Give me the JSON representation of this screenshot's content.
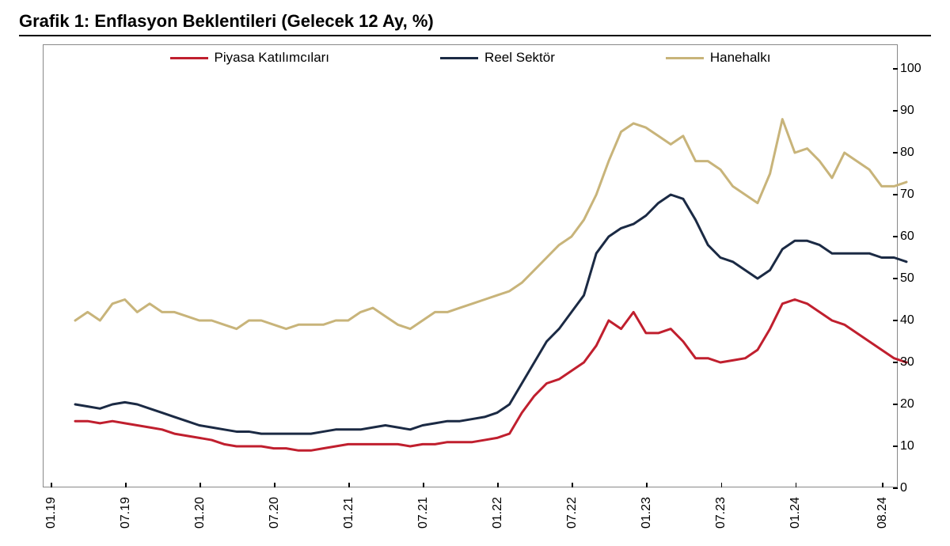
{
  "chart": {
    "type": "line",
    "title": "Grafik 1: Enflasyon Beklentileri (Gelecek 12 Ay, %)",
    "title_fontsize": 22,
    "title_fontweight": 700,
    "background_color": "#ffffff",
    "border_color": "#888888",
    "axis_color": "#000000",
    "tick_font_size": 16,
    "legend_font_size": 17,
    "legend_position": "top-center",
    "line_width": 3,
    "ylim": [
      0,
      100
    ],
    "ytick_step": 10,
    "yticklabels": [
      "0",
      "10",
      "20",
      "30",
      "40",
      "50",
      "60",
      "70",
      "80",
      "90",
      "100"
    ],
    "yaxis_side": "right",
    "x_count": 68,
    "xticklabels": [
      "01.19",
      "07.19",
      "01.20",
      "07.20",
      "01.21",
      "07.21",
      "01.22",
      "07.22",
      "01.23",
      "07.23",
      "01.24",
      "08.24"
    ],
    "xtick_positions": [
      0,
      6,
      12,
      18,
      24,
      30,
      36,
      42,
      48,
      54,
      60,
      67
    ],
    "xtick_rotation": -90,
    "series": [
      {
        "name": "Piyasa Katılımcıları",
        "color": "#c01f2e",
        "values": [
          16,
          16,
          15.5,
          16,
          15.5,
          15,
          14.5,
          14,
          13,
          12.5,
          12,
          11.5,
          10.5,
          10,
          10,
          10,
          9.5,
          9.5,
          9,
          9,
          9.5,
          10,
          10.5,
          10.5,
          10.5,
          10.5,
          10.5,
          10,
          10.5,
          10.5,
          11,
          11,
          11,
          11.5,
          12,
          13,
          18,
          22,
          25,
          26,
          28,
          30,
          34,
          40,
          38,
          42,
          37,
          37,
          38,
          35,
          31,
          31,
          30,
          30.5,
          31,
          33,
          38,
          44,
          45,
          44,
          42,
          40,
          39,
          37,
          35,
          33,
          31,
          30
        ]
      },
      {
        "name": "Reel Sektör",
        "color": "#1b2a44",
        "values": [
          20,
          19.5,
          19,
          20,
          20.5,
          20,
          19,
          18,
          17,
          16,
          15,
          14.5,
          14,
          13.5,
          13.5,
          13,
          13,
          13,
          13,
          13,
          13.5,
          14,
          14,
          14,
          14.5,
          15,
          14.5,
          14,
          15,
          15.5,
          16,
          16,
          16.5,
          17,
          18,
          20,
          25,
          30,
          35,
          38,
          42,
          46,
          56,
          60,
          62,
          63,
          65,
          68,
          70,
          69,
          64,
          58,
          55,
          54,
          52,
          50,
          52,
          57,
          59,
          59,
          58,
          56,
          56,
          56,
          56,
          55,
          55,
          54
        ]
      },
      {
        "name": "Hanehalkı",
        "color": "#c8b47a",
        "values": [
          40,
          42,
          40,
          44,
          45,
          42,
          44,
          42,
          42,
          41,
          40,
          40,
          39,
          38,
          40,
          40,
          39,
          38,
          39,
          39,
          39,
          40,
          40,
          42,
          43,
          41,
          39,
          38,
          40,
          42,
          42,
          43,
          44,
          45,
          46,
          47,
          49,
          52,
          55,
          58,
          60,
          64,
          70,
          78,
          85,
          87,
          86,
          84,
          82,
          84,
          78,
          78,
          76,
          72,
          70,
          68,
          75,
          88,
          80,
          81,
          78,
          74,
          80,
          78,
          76,
          72,
          72,
          73
        ]
      }
    ]
  }
}
